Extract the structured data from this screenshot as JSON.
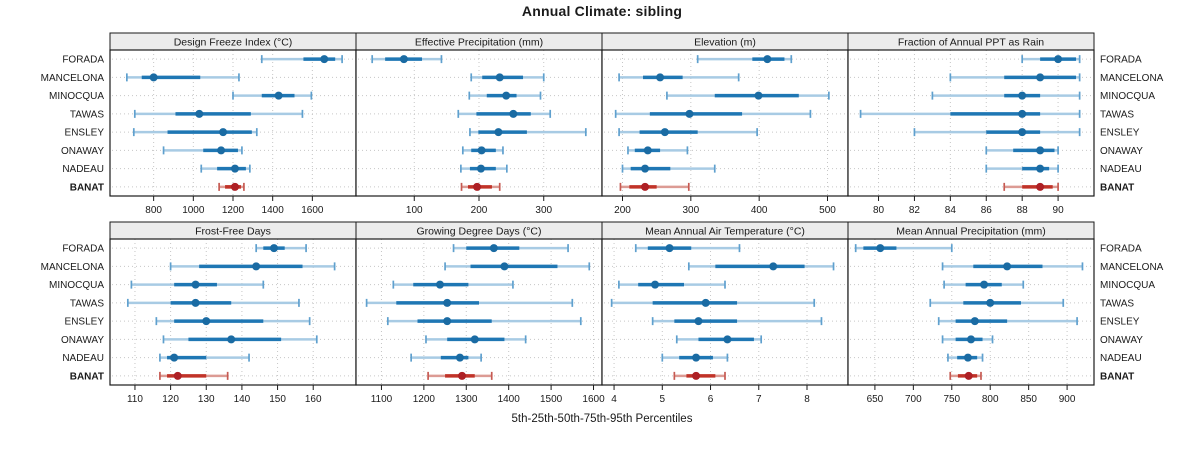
{
  "title": "Annual Climate: sibling",
  "caption": "5th-25th-50th-75th-95th Percentiles",
  "colors": {
    "series_main": "#1F77B4",
    "series_light": "#A8CBE4",
    "series_cap": "#5FA0CE",
    "series_dot": "#1A6BA3",
    "highlight_main": "#C13328",
    "highlight_light": "#DC9B94",
    "highlight_cap": "#C65A52",
    "highlight_dot": "#AE2025",
    "grid": "#C6C6C6",
    "strip_bg": "#ECECEC",
    "border": "#1A1A1A",
    "text": "#1A1A1A"
  },
  "chart_data": {
    "type": "scatter",
    "variant": "percentile-interval dotplot (lattice-style, 2x4 panels)",
    "percentile_levels": [
      5,
      25,
      50,
      75,
      95
    ],
    "sites": [
      "FORADA",
      "MANCELONA",
      "MINOCQUA",
      "TAWAS",
      "ENSLEY",
      "ONAWAY",
      "NADEAU",
      "BANAT"
    ],
    "highlight_site": "BANAT",
    "legend_position": "none",
    "grid": "dotted",
    "panels": [
      {
        "title": "Design Freeze Index (°C)",
        "xlim": [
          580,
          1820
        ],
        "ticks": [
          800,
          1000,
          1200,
          1400,
          1600
        ],
        "values": [
          [
            1345,
            1555,
            1660,
            1715,
            1750
          ],
          [
            665,
            740,
            800,
            1035,
            1230
          ],
          [
            1200,
            1345,
            1430,
            1510,
            1595
          ],
          [
            705,
            910,
            1030,
            1290,
            1550
          ],
          [
            700,
            870,
            1150,
            1295,
            1320
          ],
          [
            850,
            1050,
            1140,
            1225,
            1245
          ],
          [
            1040,
            1120,
            1210,
            1265,
            1285
          ],
          [
            1130,
            1160,
            1210,
            1240,
            1255
          ]
        ]
      },
      {
        "title": "Effective Precipitation (mm)",
        "xlim": [
          10,
          390
        ],
        "ticks": [
          100,
          200,
          300
        ],
        "values": [
          [
            35,
            55,
            84,
            112,
            142
          ],
          [
            188,
            205,
            232,
            268,
            300
          ],
          [
            185,
            212,
            242,
            258,
            295
          ],
          [
            168,
            196,
            253,
            280,
            310
          ],
          [
            186,
            199,
            230,
            274,
            365
          ],
          [
            175,
            188,
            204,
            226,
            237
          ],
          [
            172,
            186,
            203,
            226,
            243
          ],
          [
            173,
            183,
            197,
            220,
            232
          ]
        ]
      },
      {
        "title": "Elevation (m)",
        "xlim": [
          170,
          530
        ],
        "ticks": [
          200,
          300,
          400,
          500
        ],
        "values": [
          [
            310,
            390,
            412,
            437,
            447
          ],
          [
            195,
            230,
            255,
            288,
            370
          ],
          [
            265,
            335,
            399,
            458,
            502
          ],
          [
            190,
            240,
            298,
            375,
            475
          ],
          [
            195,
            225,
            262,
            310,
            397
          ],
          [
            208,
            218,
            237,
            255,
            295
          ],
          [
            200,
            212,
            233,
            270,
            335
          ],
          [
            197,
            210,
            233,
            250,
            297
          ]
        ]
      },
      {
        "title": "Fraction of Annual PPT as Rain",
        "xlim": [
          78.3,
          92.0
        ],
        "ticks": [
          80,
          82,
          84,
          86,
          88,
          90
        ],
        "values": [
          [
            88,
            89,
            90,
            91,
            91.2
          ],
          [
            84,
            87,
            89,
            91,
            91.2
          ],
          [
            83,
            87,
            88,
            89,
            91.2
          ],
          [
            79,
            84,
            88,
            89,
            91.2
          ],
          [
            82,
            86,
            88,
            89,
            91.2
          ],
          [
            86,
            87.5,
            89,
            89.8,
            90
          ],
          [
            86,
            88,
            89,
            89.5,
            90
          ],
          [
            87,
            88,
            89,
            89.7,
            90
          ]
        ]
      },
      {
        "title": "Frost-Free Days",
        "xlim": [
          103,
          172
        ],
        "ticks": [
          110,
          120,
          130,
          140,
          150,
          160
        ],
        "values": [
          [
            144,
            146,
            149,
            152,
            158
          ],
          [
            120,
            128,
            144,
            157,
            166
          ],
          [
            109,
            121,
            127,
            133,
            146
          ],
          [
            108,
            120,
            127,
            137,
            156
          ],
          [
            116,
            121,
            130,
            146,
            159
          ],
          [
            118,
            125,
            137,
            151,
            161
          ],
          [
            117,
            119,
            121,
            130,
            142
          ],
          [
            117,
            119,
            122,
            130,
            136
          ]
        ]
      },
      {
        "title": "Growing Degree Days (°C)",
        "xlim": [
          1040,
          1620
        ],
        "ticks": [
          1100,
          1200,
          1300,
          1400,
          1500,
          1600
        ],
        "values": [
          [
            1270,
            1300,
            1365,
            1425,
            1540
          ],
          [
            1250,
            1310,
            1390,
            1515,
            1590
          ],
          [
            1128,
            1175,
            1238,
            1305,
            1410
          ],
          [
            1065,
            1135,
            1255,
            1330,
            1550
          ],
          [
            1115,
            1185,
            1255,
            1360,
            1570
          ],
          [
            1205,
            1255,
            1320,
            1390,
            1440
          ],
          [
            1170,
            1240,
            1285,
            1305,
            1335
          ],
          [
            1210,
            1250,
            1290,
            1320,
            1360
          ]
        ]
      },
      {
        "title": "Mean Annual Air Temperature (°C)",
        "xlim": [
          3.75,
          8.85
        ],
        "ticks": [
          4,
          5,
          6,
          7,
          8
        ],
        "values": [
          [
            4.45,
            4.7,
            5.15,
            5.6,
            6.6
          ],
          [
            5.55,
            6.1,
            7.3,
            7.95,
            8.55
          ],
          [
            4.1,
            4.5,
            4.85,
            5.45,
            6.3
          ],
          [
            3.95,
            4.8,
            5.9,
            6.55,
            8.15
          ],
          [
            4.8,
            5.25,
            5.75,
            6.55,
            8.3
          ],
          [
            5.3,
            5.75,
            6.35,
            6.9,
            7.05
          ],
          [
            5.0,
            5.35,
            5.7,
            6.05,
            6.35
          ],
          [
            5.25,
            5.5,
            5.7,
            6.1,
            6.3
          ]
        ]
      },
      {
        "title": "Mean Annual Precipitation (mm)",
        "xlim": [
          615,
          935
        ],
        "ticks": [
          650,
          700,
          750,
          800,
          850,
          900
        ],
        "values": [
          [
            625,
            635,
            657,
            678,
            750
          ],
          [
            738,
            778,
            822,
            868,
            920
          ],
          [
            740,
            768,
            792,
            815,
            843
          ],
          [
            722,
            765,
            800,
            840,
            895
          ],
          [
            733,
            755,
            780,
            822,
            913
          ],
          [
            738,
            755,
            775,
            790,
            803
          ],
          [
            745,
            757,
            771,
            783,
            790
          ],
          [
            748,
            758,
            772,
            783,
            788
          ]
        ]
      }
    ]
  }
}
